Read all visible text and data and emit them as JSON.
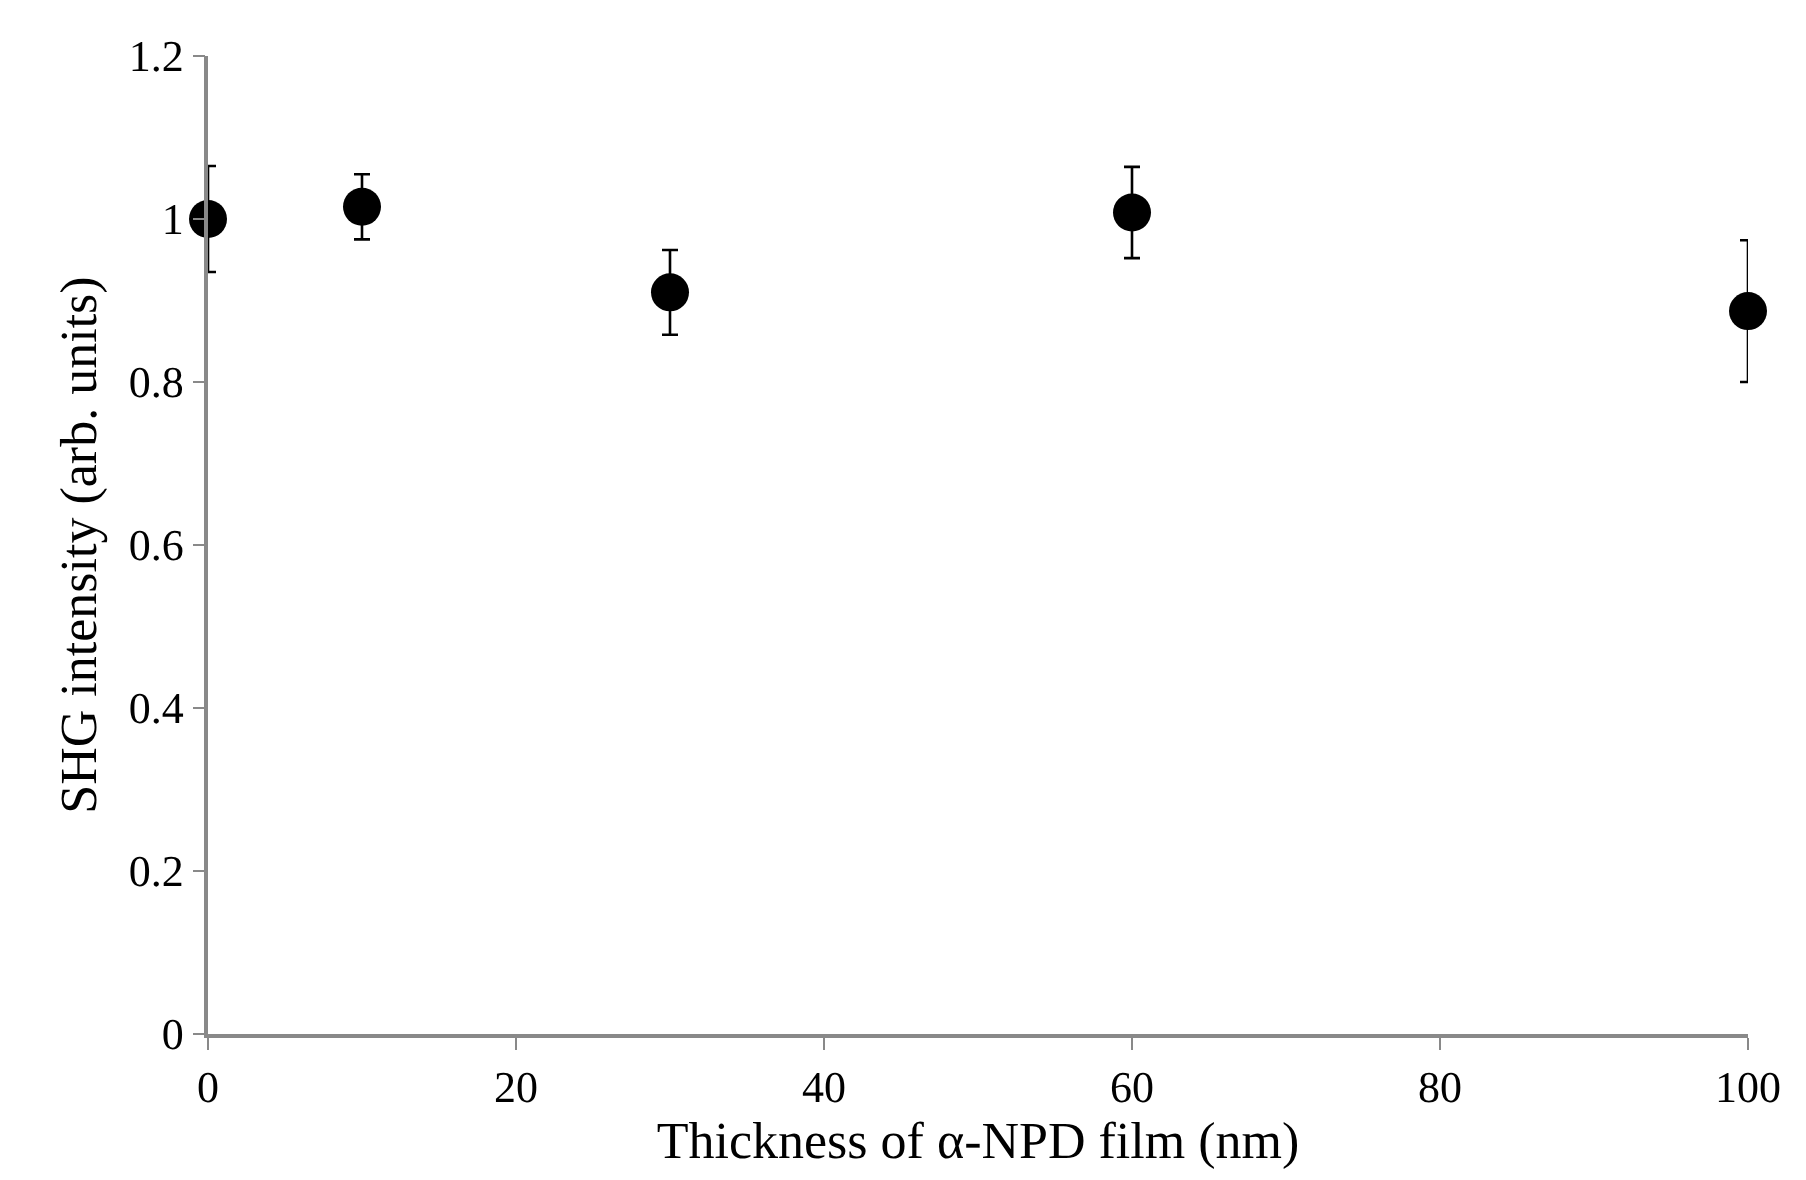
{
  "chart_data": {
    "type": "scatter",
    "xlabel": "Thickness of α-NPD film (nm)",
    "ylabel": "SHG intensity (arb. units)",
    "x": [
      0,
      10,
      30,
      60,
      100
    ],
    "values": [
      1.0,
      1.015,
      0.91,
      1.008,
      0.887
    ],
    "errors": [
      0.065,
      0.04,
      0.052,
      0.056,
      0.087
    ],
    "color": "#000000",
    "marker": "circle",
    "xlim": [
      0,
      100
    ],
    "xticks": [
      0,
      20,
      40,
      60,
      80,
      100
    ],
    "ylim": [
      0,
      1.2
    ],
    "yticks": [
      0,
      0.2,
      0.4,
      0.6,
      0.8,
      1,
      1.2
    ],
    "tick_labels": "xy"
  }
}
